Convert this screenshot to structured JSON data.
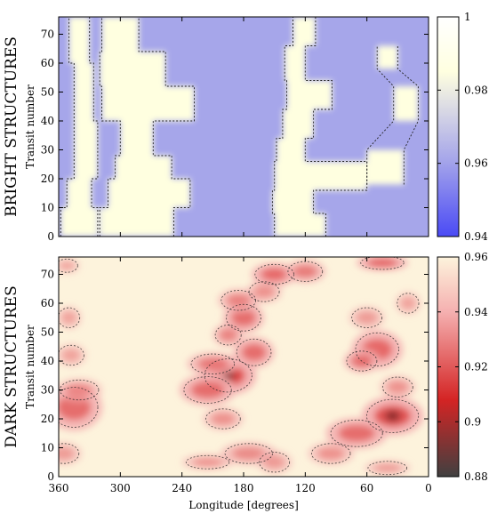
{
  "chart_data": [
    {
      "type": "heatmap",
      "panel_title": "BRIGHT STRUCTURES",
      "ylabel": "Transit number",
      "xlabel": "",
      "xlim": [
        360,
        0
      ],
      "ylim": [
        0,
        76
      ],
      "y_ticks": [
        0,
        10,
        20,
        30,
        40,
        50,
        60,
        70
      ],
      "x_ticks": [
        360,
        300,
        240,
        180,
        120,
        60,
        0
      ],
      "show_x_tick_labels": false,
      "colorbar": {
        "range": [
          0.94,
          1.0
        ],
        "ticks": [
          "0.94",
          "0.96",
          "0.98",
          "1"
        ],
        "tick_values": [
          0.94,
          0.96,
          0.98,
          1.0
        ],
        "colors": {
          "low": "#4a4af5",
          "mid_low": "#a6a6ea",
          "mid": "#ffffe0",
          "high": "#ffffff"
        }
      },
      "background_color": "#a6a6ea",
      "feature_color": "#ffffe0",
      "features": [
        {
          "band": "left",
          "segments": [
            [
              0,
              10,
              358,
              322
            ],
            [
              10,
              20,
              352,
              328
            ],
            [
              20,
              40,
              345,
              322
            ],
            [
              40,
              60,
              345,
              326
            ],
            [
              60,
              76,
              350,
              330
            ]
          ]
        },
        {
          "band": "main",
          "segments": [
            [
              0,
              10,
              320,
              248
            ],
            [
              10,
              20,
              312,
              232
            ],
            [
              20,
              28,
              305,
              250
            ],
            [
              28,
              40,
              300,
              268
            ],
            [
              40,
              52,
              318,
              228
            ],
            [
              52,
              64,
              320,
              256
            ],
            [
              64,
              76,
              318,
              282
            ]
          ]
        },
        {
          "band": "right",
          "segments": [
            [
              0,
              8,
              150,
              100
            ],
            [
              8,
              16,
              152,
              112
            ],
            [
              16,
              26,
              150,
              60
            ],
            [
              26,
              34,
              148,
              120
            ],
            [
              34,
              44,
              142,
              112
            ],
            [
              44,
              54,
              138,
              94
            ],
            [
              54,
              66,
              140,
              120
            ],
            [
              66,
              76,
              132,
              110
            ]
          ]
        },
        {
          "band": "far-right",
          "segments": [
            [
              18,
              30,
              60,
              24
            ],
            [
              40,
              52,
              34,
              10
            ],
            [
              58,
              66,
              50,
              30
            ]
          ]
        }
      ]
    },
    {
      "type": "heatmap",
      "panel_title": "DARK STRUCTURES",
      "ylabel": "Transit number",
      "xlabel": "Longitude [degrees]",
      "xlim": [
        360,
        0
      ],
      "ylim": [
        0,
        76
      ],
      "y_ticks": [
        0,
        10,
        20,
        30,
        40,
        50,
        60,
        70
      ],
      "x_ticks": [
        360,
        300,
        240,
        180,
        120,
        60,
        0
      ],
      "show_x_tick_labels": true,
      "colorbar": {
        "range": [
          0.88,
          0.96
        ],
        "ticks": [
          "0.88",
          "0.9",
          "0.92",
          "0.94",
          "0.96"
        ],
        "tick_values": [
          0.88,
          0.9,
          0.92,
          0.94,
          0.96
        ],
        "colors": {
          "low": "#404040",
          "mid_low": "#d42424",
          "mid": "#f5b0b0",
          "high": "#fdf3dc"
        }
      },
      "background_color": "#fdf3dc",
      "blobs": [
        {
          "lon": 345,
          "transit": 24,
          "rl": 22,
          "rt": 6,
          "a": 0.7
        },
        {
          "lon": 340,
          "transit": 30,
          "rl": 18,
          "rt": 3,
          "a": 0.45
        },
        {
          "lon": 355,
          "transit": 8,
          "rl": 14,
          "rt": 3,
          "a": 0.4
        },
        {
          "lon": 348,
          "transit": 42,
          "rl": 12,
          "rt": 3,
          "a": 0.35
        },
        {
          "lon": 350,
          "transit": 55,
          "rl": 10,
          "rt": 3,
          "a": 0.35
        },
        {
          "lon": 352,
          "transit": 73,
          "rl": 10,
          "rt": 2,
          "a": 0.35
        },
        {
          "lon": 195,
          "transit": 35,
          "rl": 22,
          "rt": 5,
          "a": 1.0
        },
        {
          "lon": 215,
          "transit": 30,
          "rl": 22,
          "rt": 4,
          "a": 0.7
        },
        {
          "lon": 210,
          "transit": 39,
          "rl": 20,
          "rt": 3,
          "a": 0.6
        },
        {
          "lon": 170,
          "transit": 43,
          "rl": 16,
          "rt": 4,
          "a": 0.7
        },
        {
          "lon": 180,
          "transit": 55,
          "rl": 16,
          "rt": 4,
          "a": 0.7
        },
        {
          "lon": 185,
          "transit": 61,
          "rl": 16,
          "rt": 3,
          "a": 0.55
        },
        {
          "lon": 195,
          "transit": 49,
          "rl": 12,
          "rt": 3,
          "a": 0.55
        },
        {
          "lon": 175,
          "transit": 8,
          "rl": 22,
          "rt": 3,
          "a": 0.5
        },
        {
          "lon": 215,
          "transit": 5,
          "rl": 20,
          "rt": 2,
          "a": 0.45
        },
        {
          "lon": 200,
          "transit": 20,
          "rl": 16,
          "rt": 3,
          "a": 0.45
        },
        {
          "lon": 150,
          "transit": 70,
          "rl": 18,
          "rt": 3,
          "a": 0.75
        },
        {
          "lon": 120,
          "transit": 71,
          "rl": 16,
          "rt": 3,
          "a": 0.6
        },
        {
          "lon": 160,
          "transit": 64,
          "rl": 14,
          "rt": 3,
          "a": 0.45
        },
        {
          "lon": 150,
          "transit": 5,
          "rl": 14,
          "rt": 3,
          "a": 0.4
        },
        {
          "lon": 35,
          "transit": 21,
          "rl": 24,
          "rt": 5,
          "a": 0.95
        },
        {
          "lon": 70,
          "transit": 15,
          "rl": 24,
          "rt": 4,
          "a": 0.7
        },
        {
          "lon": 95,
          "transit": 8,
          "rl": 18,
          "rt": 3,
          "a": 0.45
        },
        {
          "lon": 50,
          "transit": 44,
          "rl": 20,
          "rt": 5,
          "a": 0.75
        },
        {
          "lon": 65,
          "transit": 40,
          "rl": 14,
          "rt": 3,
          "a": 0.7
        },
        {
          "lon": 45,
          "transit": 74,
          "rl": 20,
          "rt": 2,
          "a": 0.8
        },
        {
          "lon": 30,
          "transit": 31,
          "rl": 14,
          "rt": 3,
          "a": 0.45
        },
        {
          "lon": 60,
          "transit": 55,
          "rl": 14,
          "rt": 3,
          "a": 0.4
        },
        {
          "lon": 20,
          "transit": 60,
          "rl": 10,
          "rt": 3,
          "a": 0.35
        },
        {
          "lon": 40,
          "transit": 3,
          "rl": 18,
          "rt": 2,
          "a": 0.4
        }
      ]
    }
  ]
}
